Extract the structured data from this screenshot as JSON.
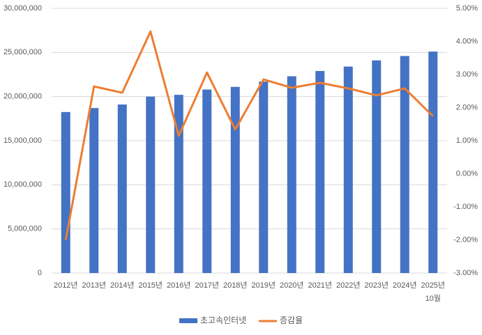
{
  "chart_data": {
    "type": "bar-line",
    "categories": [
      "2012년",
      "2013년",
      "2014년",
      "2015년",
      "2016년",
      "2017년",
      "2018년",
      "2019년",
      "2020년",
      "2021년",
      "2022년",
      "2023년",
      "2024년",
      "2025년\n10월"
    ],
    "series": [
      {
        "name": "초고속인터넷",
        "type": "bar",
        "color": "#4472c4",
        "values": [
          18250000,
          18700000,
          19100000,
          20000000,
          20200000,
          20800000,
          21100000,
          21700000,
          22300000,
          22900000,
          23400000,
          24100000,
          24600000,
          25100000
        ]
      },
      {
        "name": "증감율",
        "type": "line",
        "axis": "y2",
        "color": "#ed7d31",
        "values": [
          -2.0,
          2.64,
          2.45,
          4.3,
          1.15,
          3.06,
          1.34,
          2.85,
          2.6,
          2.75,
          2.58,
          2.37,
          2.58,
          1.74
        ]
      }
    ],
    "ylim": [
      0,
      30000000
    ],
    "yticks": [
      0,
      {
        "value": 5000000,
        "label": "5,000,000"
      },
      {
        "value": 10000000,
        "label": "10,000,000"
      },
      {
        "value": 15000000,
        "label": "15,000,000"
      },
      {
        "value": 20000000,
        "label": "20,000,000"
      },
      {
        "value": 25000000,
        "label": "25,000,000"
      },
      {
        "value": 30000000,
        "label": "30,000,000"
      }
    ],
    "y2lim": [
      -3,
      5
    ],
    "y2ticks": [
      {
        "value": -3,
        "label": "-3.00%"
      },
      {
        "value": -2,
        "label": "-2.00%"
      },
      {
        "value": -1,
        "label": "-1.00%"
      },
      {
        "value": 0,
        "label": "0.00%"
      },
      {
        "value": 1,
        "label": "1.00%"
      },
      {
        "value": 2,
        "label": "2.00%"
      },
      {
        "value": 3,
        "label": "3.00%"
      },
      {
        "value": 4,
        "label": "4.00%"
      },
      {
        "value": 5,
        "label": "5.00%"
      }
    ],
    "grid": true,
    "legend": "bottom"
  }
}
